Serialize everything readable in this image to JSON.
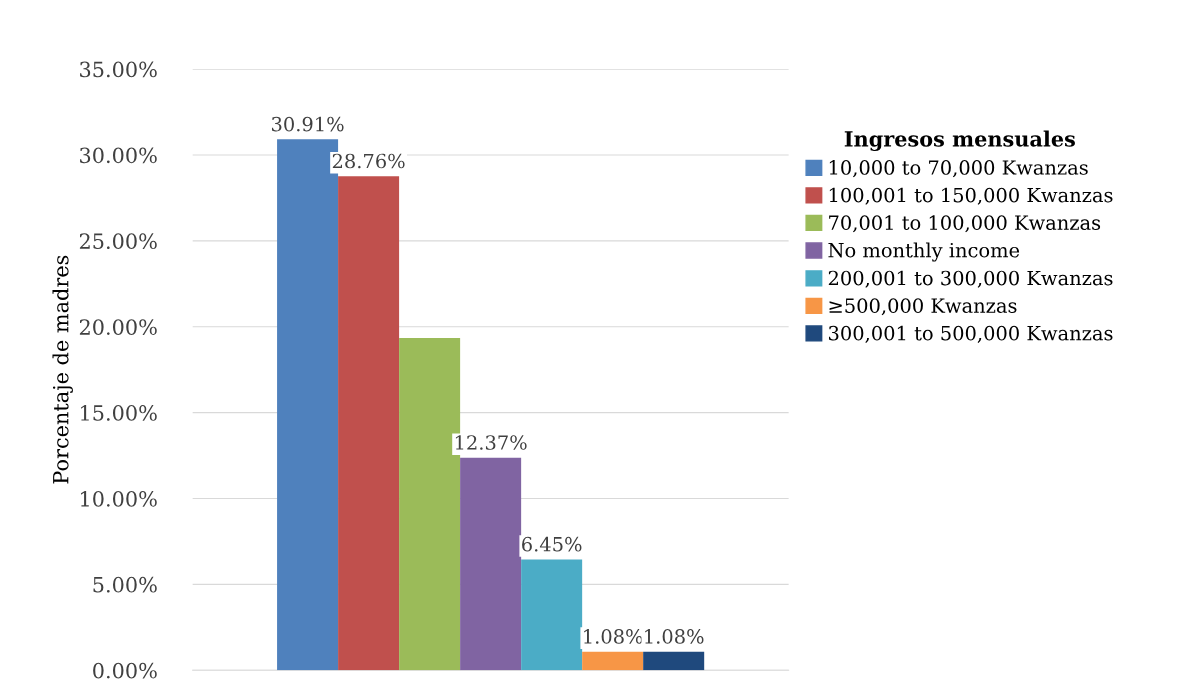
{
  "chart_data": {
    "type": "bar",
    "ylabel": "Porcentaje de madres",
    "legend_title": "Ingresos mensuales",
    "legend": "right",
    "grid": "y",
    "categories": [
      null
    ],
    "series": [
      {
        "name": "10,000 to 70,000 Kwanzas",
        "color": "#4f81bd",
        "values": [
          30.91
        ],
        "value_labels": [
          "30.91%"
        ]
      },
      {
        "name": "100,001 to 150,000 Kwanzas",
        "color": "#c0504d",
        "values": [
          28.76
        ],
        "value_labels": [
          "28.76%"
        ]
      },
      {
        "name": "70,001 to 100,000 Kwanzas",
        "color": "#9bbb59",
        "values": [
          19.35
        ],
        "value_labels": [
          null
        ]
      },
      {
        "name": "No monthly income",
        "color": "#8064a2",
        "values": [
          12.37
        ],
        "value_labels": [
          "12.37%"
        ]
      },
      {
        "name": "200,001 to 300,000 Kwanzas",
        "color": "#4bacc6",
        "values": [
          6.45
        ],
        "value_labels": [
          "6.45%"
        ]
      },
      {
        "name": "≥500,000 Kwanzas",
        "color": "#f79646",
        "values": [
          1.08
        ],
        "value_labels": [
          "1.08%"
        ]
      },
      {
        "name": "300,001 to 500,000 Kwanzas",
        "color": "#1f497d",
        "values": [
          1.08
        ],
        "value_labels": [
          "1.08%"
        ]
      }
    ],
    "ylim": [
      0,
      35
    ],
    "yticks": [
      {
        "value": 0,
        "label": "0.00%"
      },
      {
        "value": 5,
        "label": "5.00%"
      },
      {
        "value": 10,
        "label": "10.00%"
      },
      {
        "value": 15,
        "label": "15.00%"
      },
      {
        "value": 20,
        "label": "20.00%"
      },
      {
        "value": 25,
        "label": "25.00%"
      },
      {
        "value": 30,
        "label": "30.00%"
      },
      {
        "value": 35,
        "label": "35.00%"
      }
    ]
  }
}
